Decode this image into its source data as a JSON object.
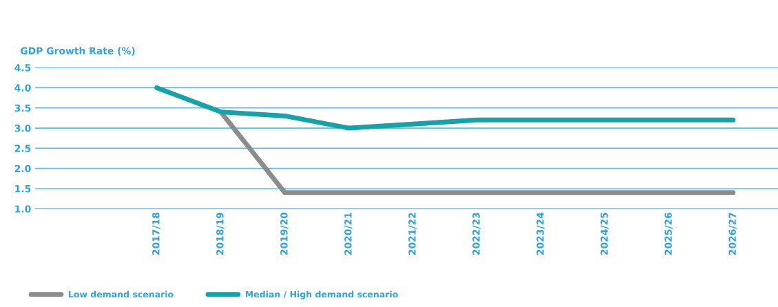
{
  "chart_data": {
    "type": "line",
    "ylabel": "GDP Growth Rate (%)",
    "categories": [
      "2017/18",
      "2018/19",
      "2019/20",
      "2020/21",
      "2021/22",
      "2022/23",
      "2023/24",
      "2024/25",
      "2025/26",
      "2026/27"
    ],
    "series": [
      {
        "name": "Low demand scenario",
        "color": "#8c8c8c",
        "values": [
          null,
          3.4,
          1.4,
          1.4,
          1.4,
          1.4,
          1.4,
          1.4,
          1.4,
          1.4
        ]
      },
      {
        "name": "Median / High demand scenario",
        "color": "#17a2a8",
        "values": [
          4.0,
          3.4,
          3.3,
          3.0,
          3.1,
          3.2,
          3.2,
          3.2,
          3.2,
          3.2
        ]
      }
    ],
    "ylim": [
      1.0,
      4.5
    ],
    "yticks": [
      {
        "value": 1,
        "label": "1.0"
      },
      1.5,
      {
        "value": 2,
        "label": "2.0"
      },
      2.5,
      {
        "value": 3,
        "label": "3.0"
      },
      3.5,
      {
        "value": 4,
        "label": "4.0"
      },
      4.5
    ],
    "grid": "y",
    "legend": "bottom left",
    "marker": "none",
    "line_style": "solid"
  }
}
